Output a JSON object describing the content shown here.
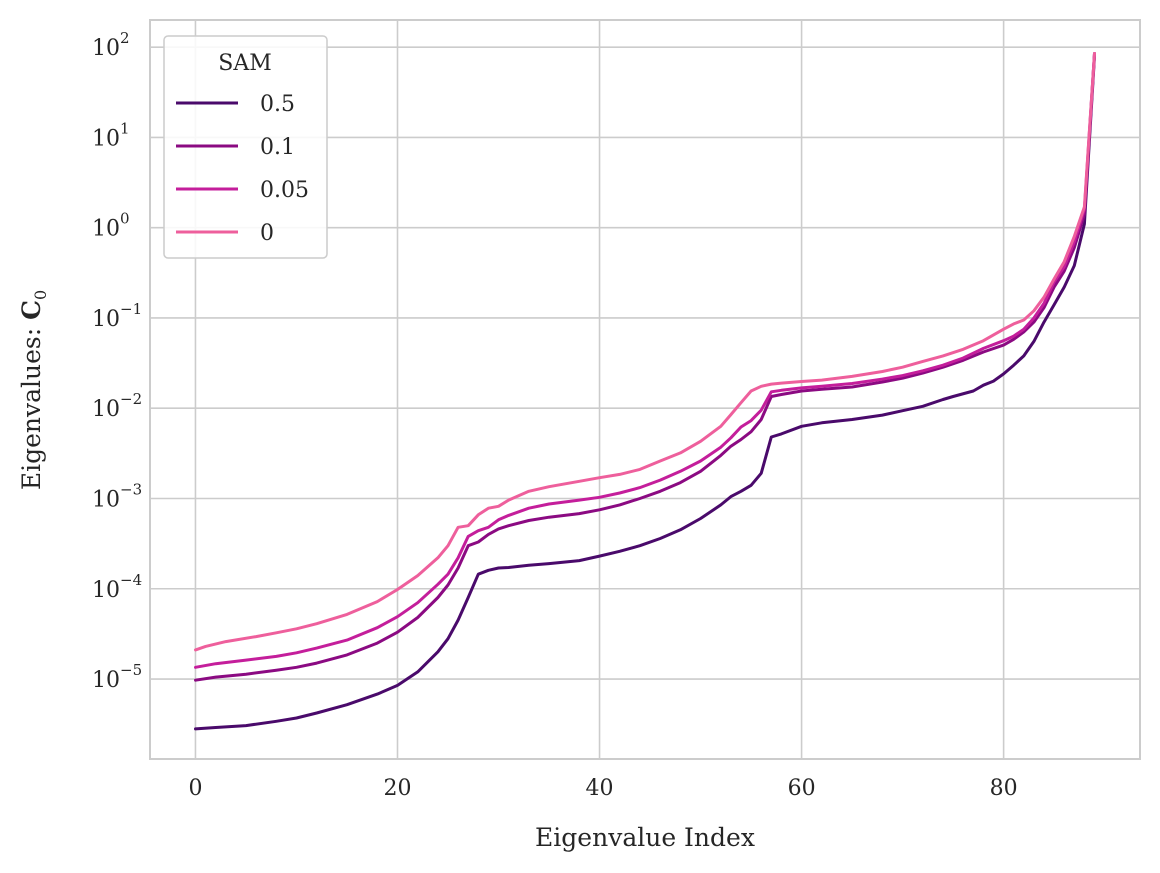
{
  "chart_data": {
    "type": "line",
    "xlabel": "Eigenvalue Index",
    "ylabel_prefix": "Eigenvalues: ",
    "ylabel_symbol": "C",
    "ylabel_subscript": "0",
    "x_ticks": [
      "0",
      "20",
      "40",
      "60",
      "80"
    ],
    "y_scale": "log",
    "y_tick_base": "10",
    "y_tick_exponents": [
      "−5",
      "−4",
      "−3",
      "−2",
      "−1",
      "0",
      "1",
      "2"
    ],
    "xlim": [
      -4.5,
      93.5
    ],
    "ylim": [
      1.3e-06,
      200.0
    ],
    "grid": true,
    "legend": {
      "title": "SAM",
      "placement": "top-left"
    },
    "series": [
      {
        "name": "0.5",
        "color": "#4a0a6b",
        "points": [
          [
            0,
            2.8e-06
          ],
          [
            2,
            2.9e-06
          ],
          [
            5,
            3.05e-06
          ],
          [
            8,
            3.4e-06
          ],
          [
            10,
            3.7e-06
          ],
          [
            12,
            4.2e-06
          ],
          [
            15,
            5.2e-06
          ],
          [
            18,
            6.8e-06
          ],
          [
            20,
            8.5e-06
          ],
          [
            22,
            1.2e-05
          ],
          [
            24,
            2e-05
          ],
          [
            25,
            2.8e-05
          ],
          [
            26,
            4.5e-05
          ],
          [
            27,
            8e-05
          ],
          [
            28,
            0.000145
          ],
          [
            29,
            0.00016
          ],
          [
            30,
            0.00017
          ],
          [
            31,
            0.000172
          ],
          [
            33,
            0.000182
          ],
          [
            35,
            0.00019
          ],
          [
            38,
            0.000205
          ],
          [
            40,
            0.00023
          ],
          [
            42,
            0.00026
          ],
          [
            44,
            0.0003
          ],
          [
            46,
            0.00036
          ],
          [
            48,
            0.00045
          ],
          [
            50,
            0.0006
          ],
          [
            52,
            0.00085
          ],
          [
            53,
            0.00105
          ],
          [
            54,
            0.0012
          ],
          [
            55,
            0.0014
          ],
          [
            56,
            0.0019
          ],
          [
            57,
            0.0048
          ],
          [
            58,
            0.0052
          ],
          [
            60,
            0.0063
          ],
          [
            62,
            0.0069
          ],
          [
            65,
            0.0075
          ],
          [
            68,
            0.0084
          ],
          [
            70,
            0.0094
          ],
          [
            72,
            0.0105
          ],
          [
            74,
            0.0125
          ],
          [
            75,
            0.0135
          ],
          [
            77,
            0.0155
          ],
          [
            78,
            0.018
          ],
          [
            79,
            0.02
          ],
          [
            80,
            0.024
          ],
          [
            81,
            0.03
          ],
          [
            82,
            0.038
          ],
          [
            83,
            0.055
          ],
          [
            84,
            0.09
          ],
          [
            85,
            0.14
          ],
          [
            86,
            0.22
          ],
          [
            87,
            0.38
          ],
          [
            88,
            1.1
          ],
          [
            89,
            80
          ]
        ]
      },
      {
        "name": "0.1",
        "color": "#8b0a82",
        "points": [
          [
            0,
            9.7e-06
          ],
          [
            2,
            1.05e-05
          ],
          [
            5,
            1.13e-05
          ],
          [
            8,
            1.25e-05
          ],
          [
            10,
            1.35e-05
          ],
          [
            12,
            1.5e-05
          ],
          [
            15,
            1.85e-05
          ],
          [
            18,
            2.5e-05
          ],
          [
            20,
            3.3e-05
          ],
          [
            22,
            4.8e-05
          ],
          [
            24,
            8e-05
          ],
          [
            25,
            0.00011
          ],
          [
            26,
            0.00017
          ],
          [
            27,
            0.0003
          ],
          [
            28,
            0.00033
          ],
          [
            29,
            0.0004
          ],
          [
            30,
            0.00046
          ],
          [
            31,
            0.0005
          ],
          [
            33,
            0.00057
          ],
          [
            35,
            0.00062
          ],
          [
            38,
            0.00068
          ],
          [
            40,
            0.00075
          ],
          [
            42,
            0.00085
          ],
          [
            44,
            0.001
          ],
          [
            46,
            0.0012
          ],
          [
            48,
            0.0015
          ],
          [
            50,
            0.002
          ],
          [
            52,
            0.003
          ],
          [
            53,
            0.0038
          ],
          [
            54,
            0.0045
          ],
          [
            55,
            0.0055
          ],
          [
            56,
            0.0075
          ],
          [
            57,
            0.0135
          ],
          [
            58,
            0.0142
          ],
          [
            60,
            0.0155
          ],
          [
            62,
            0.0162
          ],
          [
            65,
            0.0172
          ],
          [
            68,
            0.0195
          ],
          [
            70,
            0.0215
          ],
          [
            72,
            0.0245
          ],
          [
            74,
            0.0285
          ],
          [
            76,
            0.034
          ],
          [
            78,
            0.042
          ],
          [
            80,
            0.05
          ],
          [
            81,
            0.058
          ],
          [
            82,
            0.07
          ],
          [
            83,
            0.09
          ],
          [
            84,
            0.13
          ],
          [
            85,
            0.22
          ],
          [
            86,
            0.33
          ],
          [
            87,
            0.6
          ],
          [
            88,
            1.4
          ],
          [
            89,
            85
          ]
        ]
      },
      {
        "name": "0.05",
        "color": "#c41e9b",
        "points": [
          [
            0,
            1.35e-05
          ],
          [
            2,
            1.48e-05
          ],
          [
            5,
            1.62e-05
          ],
          [
            8,
            1.78e-05
          ],
          [
            10,
            1.95e-05
          ],
          [
            12,
            2.2e-05
          ],
          [
            15,
            2.7e-05
          ],
          [
            18,
            3.7e-05
          ],
          [
            20,
            4.9e-05
          ],
          [
            22,
            7e-05
          ],
          [
            24,
            0.000112
          ],
          [
            25,
            0.000145
          ],
          [
            26,
            0.00022
          ],
          [
            27,
            0.00038
          ],
          [
            28,
            0.00044
          ],
          [
            29,
            0.00048
          ],
          [
            30,
            0.00058
          ],
          [
            31,
            0.00065
          ],
          [
            33,
            0.00078
          ],
          [
            35,
            0.00087
          ],
          [
            38,
            0.00096
          ],
          [
            40,
            0.00103
          ],
          [
            42,
            0.00115
          ],
          [
            44,
            0.00132
          ],
          [
            46,
            0.0016
          ],
          [
            48,
            0.002
          ],
          [
            50,
            0.0026
          ],
          [
            52,
            0.0037
          ],
          [
            53,
            0.0047
          ],
          [
            54,
            0.0062
          ],
          [
            55,
            0.0073
          ],
          [
            56,
            0.0095
          ],
          [
            57,
            0.0152
          ],
          [
            58,
            0.0158
          ],
          [
            60,
            0.0168
          ],
          [
            62,
            0.0175
          ],
          [
            65,
            0.0188
          ],
          [
            68,
            0.021
          ],
          [
            70,
            0.023
          ],
          [
            72,
            0.026
          ],
          [
            74,
            0.03
          ],
          [
            76,
            0.036
          ],
          [
            78,
            0.046
          ],
          [
            80,
            0.056
          ],
          [
            81,
            0.063
          ],
          [
            82,
            0.075
          ],
          [
            83,
            0.1
          ],
          [
            84,
            0.145
          ],
          [
            85,
            0.25
          ],
          [
            86,
            0.37
          ],
          [
            87,
            0.7
          ],
          [
            88,
            1.6
          ],
          [
            89,
            85
          ]
        ]
      },
      {
        "name": "0",
        "color": "#ee5f9c",
        "points": [
          [
            0,
            2.1e-05
          ],
          [
            1,
            2.3e-05
          ],
          [
            3,
            2.6e-05
          ],
          [
            6,
            2.95e-05
          ],
          [
            8,
            3.25e-05
          ],
          [
            10,
            3.6e-05
          ],
          [
            12,
            4.1e-05
          ],
          [
            15,
            5.2e-05
          ],
          [
            18,
            7.2e-05
          ],
          [
            20,
            9.8e-05
          ],
          [
            22,
            0.00014
          ],
          [
            24,
            0.00022
          ],
          [
            25,
            0.0003
          ],
          [
            26,
            0.00048
          ],
          [
            27,
            0.0005
          ],
          [
            28,
            0.00066
          ],
          [
            29,
            0.00078
          ],
          [
            30,
            0.00082
          ],
          [
            31,
            0.00096
          ],
          [
            33,
            0.0012
          ],
          [
            35,
            0.00135
          ],
          [
            38,
            0.00155
          ],
          [
            40,
            0.0017
          ],
          [
            42,
            0.00185
          ],
          [
            44,
            0.0021
          ],
          [
            46,
            0.0026
          ],
          [
            48,
            0.0032
          ],
          [
            50,
            0.0043
          ],
          [
            52,
            0.0063
          ],
          [
            53,
            0.0085
          ],
          [
            54,
            0.0115
          ],
          [
            55,
            0.0155
          ],
          [
            56,
            0.0175
          ],
          [
            57,
            0.0185
          ],
          [
            58,
            0.019
          ],
          [
            60,
            0.0198
          ],
          [
            62,
            0.0205
          ],
          [
            65,
            0.0225
          ],
          [
            68,
            0.0255
          ],
          [
            70,
            0.0285
          ],
          [
            72,
            0.033
          ],
          [
            74,
            0.038
          ],
          [
            76,
            0.045
          ],
          [
            78,
            0.056
          ],
          [
            80,
            0.075
          ],
          [
            81,
            0.086
          ],
          [
            82,
            0.095
          ],
          [
            83,
            0.12
          ],
          [
            84,
            0.17
          ],
          [
            85,
            0.27
          ],
          [
            86,
            0.42
          ],
          [
            87,
            0.8
          ],
          [
            88,
            1.7
          ],
          [
            89,
            85
          ]
        ]
      }
    ]
  }
}
